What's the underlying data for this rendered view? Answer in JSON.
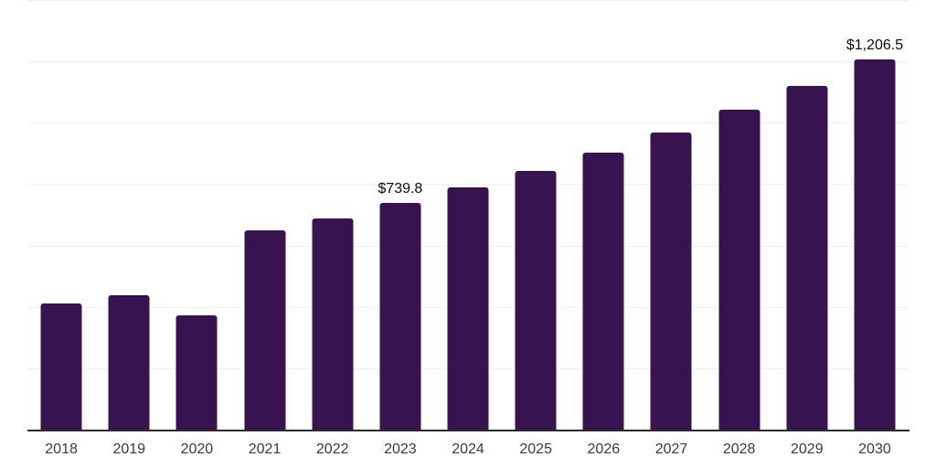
{
  "chart_data": {
    "type": "bar",
    "title": "",
    "xlabel": "",
    "ylabel": "",
    "categories": [
      "2018",
      "2019",
      "2020",
      "2021",
      "2022",
      "2023",
      "2024",
      "2025",
      "2026",
      "2027",
      "2028",
      "2029",
      "2030"
    ],
    "values": [
      411,
      438,
      372,
      649,
      688,
      739.8,
      789,
      843,
      902,
      968,
      1042,
      1120,
      1206.5
    ],
    "data_labels": [
      "",
      "",
      "",
      "",
      "",
      "$739.8",
      "",
      "",
      "",
      "",
      "",
      "",
      "$1,206.5"
    ],
    "ylim": [
      0,
      1400
    ],
    "gridline_step": 200,
    "grid": true,
    "legend_position": "none",
    "bar_color": "#371450",
    "gridline_color": "#f2f2f2",
    "axis_line_color": "#2b2b2b",
    "tick_label_color": "#3a3a3a",
    "data_label_color": "#0d0d0d"
  }
}
